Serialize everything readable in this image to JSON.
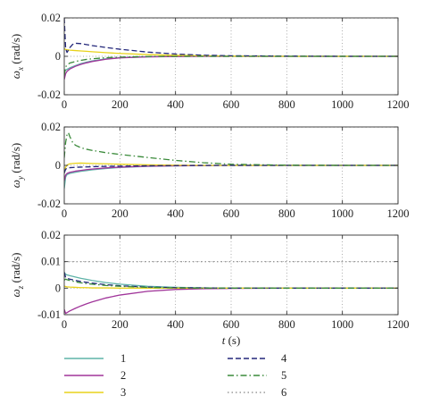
{
  "chart_data": [
    {
      "type": "line",
      "ylabel": "ω_x (rad/s)",
      "ylabel_symbol": "ω",
      "ylabel_sub": "x",
      "ylabel_unit": " (rad/s)",
      "xlabel": "",
      "xlim": [
        0,
        1200
      ],
      "ylim": [
        -0.02,
        0.02
      ],
      "xticks": [
        "0",
        "200",
        "400",
        "600",
        "800",
        "1000",
        "1200"
      ],
      "yticks": [
        "-0.02",
        "0",
        "0.02"
      ],
      "grid": true,
      "series": [
        {
          "name": "1",
          "x": [
            0,
            5,
            10,
            20,
            40,
            60,
            80,
            100,
            150,
            200,
            300,
            400,
            500,
            600,
            800,
            1000,
            1200
          ],
          "y": [
            -0.008,
            -0.0072,
            -0.0068,
            -0.006,
            -0.0048,
            -0.0038,
            -0.003,
            -0.0024,
            -0.0013,
            -0.0007,
            -0.0002,
            -5e-05,
            0,
            0,
            0,
            0,
            0
          ]
        },
        {
          "name": "2",
          "x": [
            0,
            5,
            10,
            20,
            40,
            60,
            80,
            100,
            150,
            200,
            300,
            400,
            500,
            600,
            800,
            1000,
            1200
          ],
          "y": [
            -0.012,
            -0.009,
            -0.0078,
            -0.0066,
            -0.0052,
            -0.0042,
            -0.0034,
            -0.0027,
            -0.0015,
            -0.0008,
            -0.0003,
            -0.0001,
            0,
            0,
            0,
            0,
            0
          ]
        },
        {
          "name": "3",
          "x": [
            0,
            5,
            10,
            20,
            40,
            60,
            80,
            100,
            150,
            200,
            300,
            400,
            500,
            600,
            800,
            1000,
            1200
          ],
          "y": [
            0.004,
            0.0036,
            0.0034,
            0.0032,
            0.003,
            0.0028,
            0.0026,
            0.0024,
            0.0019,
            0.0015,
            0.0009,
            0.0005,
            0.0003,
            0.0001,
            0,
            0,
            0
          ]
        },
        {
          "name": "4",
          "x": [
            0,
            5,
            10,
            20,
            30,
            40,
            60,
            80,
            100,
            150,
            200,
            300,
            400,
            500,
            600,
            800,
            1000,
            1200
          ],
          "y": [
            0.02,
            0.004,
            0.002,
            0.0045,
            0.0062,
            0.0068,
            0.0066,
            0.0061,
            0.0056,
            0.0046,
            0.0037,
            0.0022,
            0.0012,
            0.0006,
            0.0003,
            0.0001,
            0,
            0
          ]
        },
        {
          "name": "5",
          "x": [
            0,
            5,
            10,
            20,
            40,
            60,
            80,
            100,
            150,
            200,
            300,
            400,
            500,
            600,
            800,
            1000,
            1200
          ],
          "y": [
            -0.01,
            -0.0055,
            -0.0045,
            -0.0035,
            -0.0027,
            -0.0021,
            -0.0016,
            -0.0013,
            -0.0007,
            -0.0004,
            -0.0001,
            0,
            0,
            0,
            0,
            0,
            0
          ]
        },
        {
          "name": "6",
          "x": [
            0,
            1200
          ],
          "y": [
            0.02,
            0.02
          ]
        }
      ]
    },
    {
      "type": "line",
      "ylabel": "ω_y (rad/s)",
      "ylabel_symbol": "ω",
      "ylabel_sub": "y",
      "ylabel_unit": " (rad/s)",
      "xlabel": "",
      "xlim": [
        0,
        1200
      ],
      "ylim": [
        -0.02,
        0.02
      ],
      "xticks": [
        "0",
        "200",
        "400",
        "600",
        "800",
        "1000",
        "1200"
      ],
      "yticks": [
        "-0.02",
        "0",
        "0.02"
      ],
      "grid": true,
      "series": [
        {
          "name": "1",
          "x": [
            0,
            5,
            10,
            20,
            40,
            60,
            80,
            100,
            150,
            200,
            300,
            400,
            500,
            600,
            800,
            1000,
            1200
          ],
          "y": [
            -0.012,
            -0.006,
            -0.0048,
            -0.0042,
            -0.0036,
            -0.0031,
            -0.0027,
            -0.0023,
            -0.0016,
            -0.0011,
            -0.0005,
            -0.0002,
            -0.0001,
            0,
            0,
            0,
            0
          ]
        },
        {
          "name": "2",
          "x": [
            0,
            5,
            10,
            20,
            40,
            60,
            80,
            100,
            150,
            200,
            300,
            400,
            500,
            600,
            800,
            1000,
            1200
          ],
          "y": [
            -0.008,
            -0.005,
            -0.0042,
            -0.0036,
            -0.003,
            -0.0026,
            -0.0022,
            -0.0019,
            -0.0013,
            -0.0009,
            -0.0004,
            -0.0002,
            -0.0001,
            0,
            0,
            0,
            0
          ]
        },
        {
          "name": "3",
          "x": [
            0,
            5,
            10,
            20,
            40,
            60,
            80,
            100,
            150,
            200,
            300,
            400,
            500,
            600,
            800,
            1000,
            1200
          ],
          "y": [
            -0.004,
            -0.001,
            0.0002,
            0.0008,
            0.0011,
            0.0012,
            0.0011,
            0.001,
            0.0008,
            0.0006,
            0.0003,
            0.0001,
            0,
            0,
            0,
            0,
            0
          ]
        },
        {
          "name": "4",
          "x": [
            0,
            5,
            10,
            20,
            40,
            60,
            80,
            100,
            150,
            200,
            300,
            400,
            500,
            600,
            800,
            1000,
            1200
          ],
          "y": [
            -0.004,
            -0.002,
            -0.0015,
            -0.0012,
            -0.001,
            -0.0009,
            -0.0008,
            -0.0007,
            -0.0005,
            -0.0004,
            -0.0002,
            -0.0001,
            0,
            0,
            0,
            0,
            0
          ]
        },
        {
          "name": "5",
          "x": [
            0,
            5,
            10,
            15,
            20,
            30,
            40,
            60,
            80,
            100,
            150,
            200,
            300,
            400,
            500,
            600,
            800,
            1000,
            1200
          ],
          "y": [
            0.004,
            0.012,
            0.016,
            0.017,
            0.015,
            0.012,
            0.0105,
            0.0092,
            0.0084,
            0.0078,
            0.0066,
            0.0057,
            0.0041,
            0.0026,
            0.0014,
            0.0006,
            0.0001,
            0,
            0
          ]
        },
        {
          "name": "6",
          "x": [
            0,
            1200
          ],
          "y": [
            0.02,
            0.02
          ]
        }
      ]
    },
    {
      "type": "line",
      "ylabel": "ω_z (rad/s)",
      "ylabel_symbol": "ω",
      "ylabel_sub": "z",
      "ylabel_unit": " (rad/s)",
      "xlabel": "t (s)",
      "xlabel_symbol": "t",
      "xlabel_unit": " (s)",
      "xlim": [
        0,
        1200
      ],
      "ylim": [
        -0.01,
        0.02
      ],
      "xticks": [
        "0",
        "200",
        "400",
        "600",
        "800",
        "1000",
        "1200"
      ],
      "yticks": [
        "-0.01",
        "0",
        "0.01",
        "0.02"
      ],
      "grid": true,
      "series": [
        {
          "name": "1",
          "x": [
            0,
            5,
            10,
            20,
            40,
            60,
            80,
            100,
            150,
            200,
            300,
            400,
            500,
            600,
            800,
            1000,
            1200
          ],
          "y": [
            0.006,
            0.0052,
            0.005,
            0.0047,
            0.0042,
            0.0037,
            0.0033,
            0.0029,
            0.0021,
            0.0015,
            0.0007,
            0.0003,
            0.0001,
            0,
            0,
            0,
            0
          ]
        },
        {
          "name": "2",
          "x": [
            0,
            5,
            10,
            20,
            40,
            60,
            80,
            100,
            150,
            200,
            300,
            400,
            500,
            600,
            800,
            1000,
            1200
          ],
          "y": [
            -0.008,
            -0.0095,
            -0.0092,
            -0.0086,
            -0.0076,
            -0.0067,
            -0.0059,
            -0.0052,
            -0.0037,
            -0.0026,
            -0.0012,
            -0.0005,
            -0.0002,
            -0.0001,
            0,
            0,
            0
          ]
        },
        {
          "name": "3",
          "x": [
            0,
            5,
            10,
            20,
            40,
            60,
            80,
            100,
            150,
            200,
            300,
            400,
            500,
            600,
            800,
            1000,
            1200
          ],
          "y": [
            0.0008,
            0.0006,
            0.0005,
            0.0004,
            0.0003,
            0.0002,
            0.0002,
            0.0001,
            0.0001,
            0,
            0,
            0,
            0,
            0,
            0,
            0,
            0
          ]
        },
        {
          "name": "4",
          "x": [
            0,
            5,
            10,
            20,
            40,
            60,
            80,
            100,
            150,
            200,
            300,
            400,
            500,
            600,
            800,
            1000,
            1200
          ],
          "y": [
            0.006,
            0.004,
            0.0037,
            0.0034,
            0.0029,
            0.0025,
            0.0022,
            0.0019,
            0.0013,
            0.0009,
            0.0004,
            0.0002,
            0.0001,
            0,
            0,
            0,
            0
          ]
        },
        {
          "name": "5",
          "x": [
            0,
            5,
            10,
            20,
            40,
            60,
            80,
            100,
            150,
            200,
            300,
            400,
            500,
            600,
            800,
            1000,
            1200
          ],
          "y": [
            0.003,
            0.0034,
            0.0032,
            0.0029,
            0.0024,
            0.002,
            0.0017,
            0.0015,
            0.001,
            0.0007,
            0.0003,
            0.0001,
            0,
            0,
            0,
            0,
            0
          ]
        },
        {
          "name": "6",
          "x": [
            0,
            1200
          ],
          "y": [
            0.01,
            0.01
          ]
        }
      ]
    }
  ],
  "legend": {
    "placement": "bottom",
    "items": [
      {
        "label": "1",
        "style": "solid",
        "color": "#5fb3a8"
      },
      {
        "label": "2",
        "style": "solid",
        "color": "#a0359a"
      },
      {
        "label": "3",
        "style": "solid",
        "color": "#e8d21a"
      },
      {
        "label": "4",
        "style": "dashed",
        "color": "#23277a"
      },
      {
        "label": "5",
        "style": "dashdot",
        "color": "#3a8a3a"
      },
      {
        "label": "6",
        "style": "dotted",
        "color": "#9a9a9a"
      }
    ]
  },
  "colors": {
    "axis": "#333333",
    "grid": "#8a8a8a"
  }
}
